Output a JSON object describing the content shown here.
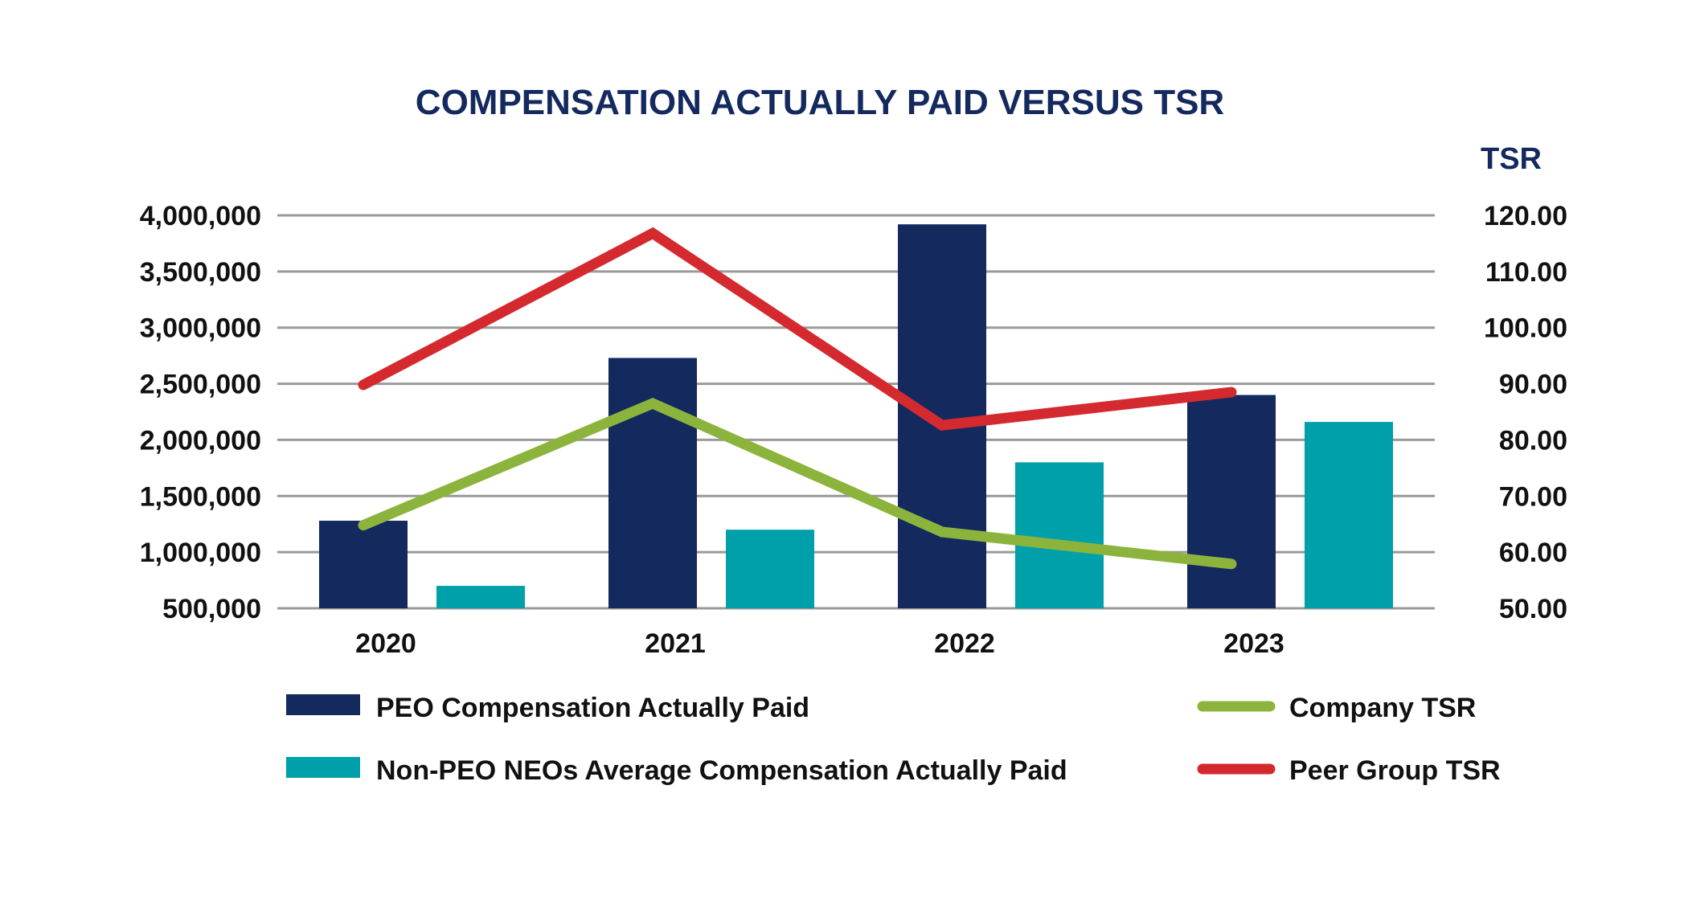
{
  "chart_data": {
    "type": "bar",
    "title": "COMPENSATION ACTUALLY PAID VERSUS TSR",
    "categories": [
      "2020",
      "2021",
      "2022",
      "2023"
    ],
    "y_left": {
      "ticks": [
        "500,000",
        "1,000,000",
        "1,500,000",
        "2,000,000",
        "2,500,000",
        "3,000,000",
        "3,500,000",
        "4,000,000"
      ],
      "ylim": [
        500000,
        4000000
      ]
    },
    "y_right": {
      "label": "TSR",
      "ticks": [
        "50.00",
        "60.00",
        "70.00",
        "80.00",
        "90.00",
        "100.00",
        "110.00",
        "120.00"
      ],
      "ylim": [
        50,
        120
      ]
    },
    "grid": true,
    "series": [
      {
        "name": "PEO Compensation Actually Paid",
        "kind": "bar",
        "axis": "left",
        "color": "#14295e",
        "values": [
          1280000,
          2730000,
          3920000,
          2400000
        ]
      },
      {
        "name": "Non-PEO NEOs Average Compensation Actually Paid",
        "kind": "bar",
        "axis": "left",
        "color": "#00a0aa",
        "values": [
          700000,
          1200000,
          1800000,
          2160000
        ]
      },
      {
        "name": "Company TSR",
        "kind": "line",
        "axis": "right",
        "color": "#8cb43c",
        "values": [
          64.8,
          86.5,
          63.6,
          57.9
        ]
      },
      {
        "name": "Peer Group TSR",
        "kind": "line",
        "axis": "right",
        "color": "#d42a2f",
        "values": [
          89.8,
          116.8,
          82.6,
          88.5
        ]
      }
    ],
    "legend": {
      "placement": "bottom",
      "items": [
        {
          "label": "PEO Compensation Actually Paid",
          "kind": "bar",
          "color": "#14295e"
        },
        {
          "label": "Non-PEO NEOs Average Compensation Actually Paid",
          "kind": "bar",
          "color": "#00a0aa"
        },
        {
          "label": "Company TSR",
          "kind": "line",
          "color": "#8cb43c"
        },
        {
          "label": "Peer Group TSR",
          "kind": "line",
          "color": "#d42a2f"
        }
      ]
    }
  }
}
